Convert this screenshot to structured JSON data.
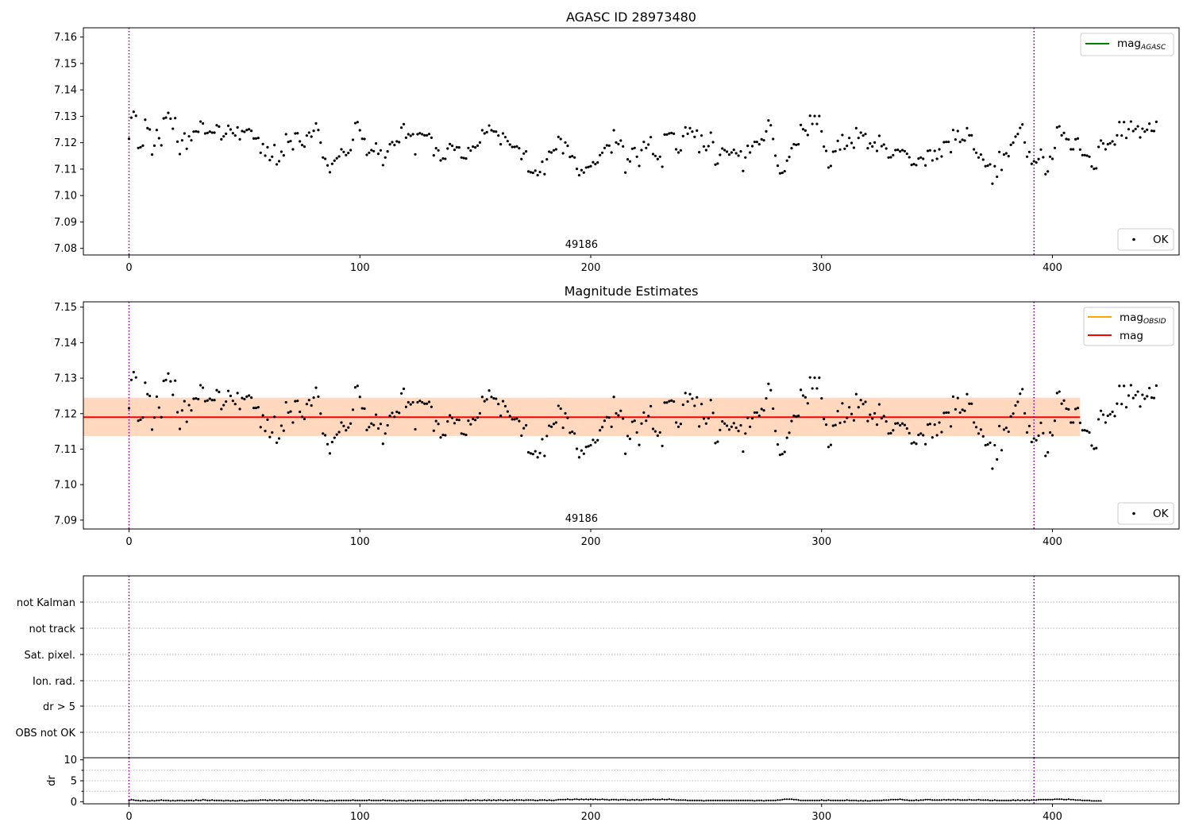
{
  "chart_data": [
    {
      "type": "scatter",
      "title": "AGASC ID 28973480",
      "annotation": "49186",
      "xlim": [
        -20,
        455
      ],
      "ylim": [
        7.0775,
        7.1635
      ],
      "xticks": [
        0,
        100,
        200,
        300,
        400
      ],
      "yticks": [
        7.08,
        7.09,
        7.1,
        7.11,
        7.12,
        7.13,
        7.14,
        7.15,
        7.16
      ],
      "vlines": [
        0,
        392
      ],
      "legend_top": [
        {
          "label": "mag",
          "sub": "AGASC",
          "color": "#008000"
        }
      ],
      "legend_bottom": [
        {
          "label": "OK",
          "color": "#000000"
        }
      ],
      "legend_placement": "top-right / bottom-right",
      "grid": false
    },
    {
      "type": "scatter",
      "title": "Magnitude Estimates",
      "annotation": "49186",
      "xlim": [
        -20,
        455
      ],
      "ylim": [
        7.0875,
        7.1515
      ],
      "xticks": [
        0,
        100,
        200,
        300,
        400
      ],
      "yticks": [
        7.09,
        7.1,
        7.11,
        7.12,
        7.13,
        7.14,
        7.15
      ],
      "vlines": [
        0,
        392
      ],
      "mag_line": 7.119,
      "mag_band": [
        7.1137,
        7.1245
      ],
      "band_xrange": [
        -20,
        412
      ],
      "legend_top": [
        {
          "label": "mag",
          "sub": "OBSID",
          "color": "#ffa500"
        },
        {
          "label": "mag",
          "sub": "",
          "color": "#ff0000"
        }
      ],
      "legend_bottom": [
        {
          "label": "OK",
          "color": "#000000"
        }
      ],
      "grid": false
    },
    {
      "type": "table",
      "flag_labels": [
        "not Kalman",
        "not track",
        "Sat. pixel.",
        "Ion. rad.",
        "dr > 5",
        "OBS not OK"
      ],
      "vlines": [
        0,
        392
      ],
      "xlim": [
        -20,
        455
      ],
      "grid": true
    },
    {
      "type": "scatter",
      "ylabel": "dr",
      "xlim": [
        -20,
        455
      ],
      "ylim": [
        -0.5,
        10.5
      ],
      "xticks": [
        0,
        100,
        200,
        300,
        400
      ],
      "yticks": [
        0,
        5,
        10
      ],
      "vlines": [
        0,
        392
      ],
      "dr_typical": [
        0,
        0.8
      ],
      "grid": true
    }
  ],
  "colors": {
    "vline": "#800080",
    "points": "#000000",
    "band_fill": "#ffc0cb",
    "band_overlay": "#ffa500",
    "grid": "#b0b0b0"
  },
  "mag_series": [
    7.1215,
    7.1295,
    7.1317,
    7.1302,
    7.118,
    7.1183,
    7.1189,
    7.1287,
    7.1255,
    7.125,
    7.1155,
    7.1189,
    7.1248,
    7.1217,
    7.119,
    7.1292,
    7.1295,
    7.1313,
    7.1291,
    7.1253,
    7.1293,
    7.1204,
    7.1157,
    7.1209,
    7.1235,
    7.1177,
    7.1224,
    7.1209,
    7.1242,
    7.1243,
    7.1241,
    7.128,
    7.1273,
    7.1235,
    7.1237,
    7.1242,
    7.1238,
    7.1238,
    7.1266,
    7.1261,
    7.1213,
    7.1224,
    7.1234,
    7.1264,
    7.125,
    7.1236,
    7.1227,
    7.1258,
    7.1213,
    7.1244,
    7.1241,
    7.1248,
    7.1251,
    7.1245,
    7.1216,
    7.1216,
    7.1218,
    7.1162,
    7.1195,
    7.1151,
    7.1183,
    7.1134,
    7.1147,
    7.1191,
    7.1118,
    7.113,
    7.1166,
    7.1152,
    7.1232,
    7.1203,
    7.1206,
    7.1175,
    7.1235,
    7.1236,
    7.1205,
    7.1191,
    7.1185,
    7.1227,
    7.1238,
    7.1223,
    7.1245,
    7.1273,
    7.1248,
    7.12,
    7.1144,
    7.1139,
    7.1114,
    7.1088,
    7.112,
    7.1132,
    7.1141,
    7.1148,
    7.1175,
    7.1165,
    7.1153,
    7.1161,
    7.1172,
    7.1211,
    7.1274,
    7.1278,
    7.1247,
    7.1215,
    7.1214,
    7.1154,
    7.1162,
    7.1172,
    7.1168,
    7.1197,
    7.1158,
    7.1171,
    7.1115,
    7.1144,
    7.1167,
    7.1194,
    7.1202,
    7.1191,
    7.1205,
    7.1202,
    7.1257,
    7.127,
    7.1219,
    7.1232,
    7.1226,
    7.1232,
    7.1156,
    7.1232,
    7.1236,
    7.1232,
    7.1228,
    7.1228,
    7.1233,
    7.1219,
    7.1152,
    7.1179,
    7.1171,
    7.1133,
    7.114,
    7.1139,
    7.1178,
    7.1195,
    7.1188,
    7.1173,
    7.1183,
    7.1182,
    7.1144,
    7.1142,
    7.114,
    7.118,
    7.117,
    7.1185,
    7.1182,
    7.1189,
    7.1201,
    7.1247,
    7.1235,
    7.124,
    7.1265,
    7.1247,
    7.1243,
    7.1242,
    7.1227,
    7.1194,
    7.1235,
    7.1221,
    7.1206,
    7.1193,
    7.1184,
    7.1184,
    7.1186,
    7.1179,
    7.1138,
    7.1159,
    7.1167,
    7.1091,
    7.1088,
    7.1086,
    7.1094,
    7.1077,
    7.1089,
    7.1128,
    7.1081,
    7.1137,
    7.1166,
    7.1163,
    7.1171,
    7.1175,
    7.1222,
    7.1214,
    7.116,
    7.1201,
    7.1188,
    7.1146,
    7.1149,
    7.1144,
    7.1101,
    7.1077,
    7.1096,
    7.1087,
    7.1106,
    7.1108,
    7.1111,
    7.1126,
    7.1119,
    7.1125,
    7.1153,
    7.1162,
    7.118,
    7.119,
    7.1189,
    7.1163,
    7.1247,
    7.1201,
    7.1195,
    7.1208,
    7.1186,
    7.1087,
    7.1137,
    7.1129,
    7.1177,
    7.118,
    7.1147,
    7.1112,
    7.1172,
    7.1203,
    7.118,
    7.1193,
    7.1221,
    7.1157,
    7.115,
    7.1138,
    7.1147,
    7.1109,
    7.1231,
    7.1231,
    7.1235,
    7.1237,
    7.1234,
    7.1175,
    7.1163,
    7.1171,
    7.1225,
    7.1258,
    7.1234,
    7.1255,
    7.1242,
    7.1222,
    7.1246,
    7.1164,
    7.1227,
    7.1186,
    7.1172,
    7.1187,
    7.1238,
    7.1202,
    7.1117,
    7.1121,
    7.1154,
    7.1178,
    7.1172,
    7.1166,
    7.1155,
    7.1163,
    7.1173,
    7.116,
    7.1151,
    7.1167,
    7.1093,
    7.1144,
    7.1188,
    7.1163,
    7.1187,
    7.1203,
    7.1203,
    7.1194,
    7.1213,
    7.1209,
    7.1243,
    7.1284,
    7.1266,
    7.1214,
    7.1151,
    7.1113,
    7.1084,
    7.1086,
    7.1092,
    7.1132,
    7.1146,
    7.1179,
    7.1194,
    7.1192,
    7.1194,
    7.1267,
    7.1251,
    7.1246,
    7.1229,
    7.1302,
    7.1271,
    7.1301,
    7.1271,
    7.1301,
    7.1243,
    7.1185,
    7.1169,
    7.1106,
    7.1112,
    7.1166,
    7.1168,
    7.1207,
    7.1174,
    7.1229,
    7.1177,
    7.1188,
    7.1218,
    7.1199,
    7.1181,
    7.1255,
    7.1218,
    7.1238,
    7.1227,
    7.1233,
    7.1179,
    7.1197,
    7.1186,
    7.1201,
    7.1169,
    7.1226,
    7.1187,
    7.1193,
    7.1178,
    7.1144,
    7.1145,
    7.1153,
    7.1172,
    7.1173,
    7.1167,
    7.1172,
    7.1168,
    7.1158,
    7.1145,
    7.1116,
    7.1119,
    7.1115,
    7.114,
    7.1144,
    7.1139,
    7.1114,
    7.1169,
    7.1171,
    7.1133,
    7.1169,
    7.1139,
    7.1175,
    7.1148,
    7.1202,
    7.1203,
    7.1203,
    7.1164,
    7.1248,
    7.1212,
    7.1244,
    7.1203,
    7.1211,
    7.1208,
    7.1255,
    7.1228,
    7.1228,
    7.1175,
    7.1162,
    7.1144,
    7.1155,
    7.1136,
    7.1111,
    7.1113,
    7.1118,
    7.1045,
    7.1111,
    7.1071,
    7.1165,
    7.1097,
    7.1155,
    7.116,
    7.1149,
    7.1192,
    7.12,
    7.1223,
    7.1233,
    7.1256,
    7.1269,
    7.1201,
    7.1147,
    7.1165,
    7.112,
    7.113,
    7.1125,
    7.1138,
    7.1174,
    7.1145,
    7.1081,
    7.1091,
    7.1147,
    7.1139,
    7.118,
    7.1258,
    7.1262,
    7.1228,
    7.1237,
    7.1214,
    7.1212,
    7.1175,
    7.1175,
    7.1213,
    7.1216,
    7.1174,
    7.1153,
    7.1153,
    7.1151,
    7.1147,
    7.111,
    7.1101,
    7.1103,
    7.1184,
    7.1208,
    7.1197,
    7.1175,
    7.1194,
    7.1198,
    7.1205,
    7.1193,
    7.1228,
    7.1278,
    7.1227,
    7.1278,
    7.1218,
    7.1251,
    7.128,
    7.1244,
    7.1252,
    7.1262,
    7.122,
    7.1253,
    7.1242,
    7.1249,
    7.1272,
    7.1245,
    7.1244,
    7.1279
  ],
  "dr_series": [
    0.2,
    0.5,
    0.4,
    0.3,
    0.3,
    0.2,
    0.3,
    0.3,
    0.2,
    0.2,
    0.3,
    0.2,
    0.3,
    0.3,
    0.4,
    0.3,
    0.3,
    0.3,
    0.2,
    0.3,
    0.2,
    0.3,
    0.3,
    0.3,
    0.2,
    0.3,
    0.3,
    0.3,
    0.2,
    0.4,
    0.3,
    0.3,
    0.5,
    0.4,
    0.3,
    0.3,
    0.4,
    0.3,
    0.3,
    0.3,
    0.3,
    0.2,
    0.3,
    0.3,
    0.2,
    0.3,
    0.2,
    0.2,
    0.3,
    0.3,
    0.2,
    0.2,
    0.3,
    0.3,
    0.3,
    0.3,
    0.3,
    0.4,
    0.4,
    0.4,
    0.3,
    0.4,
    0.3,
    0.4,
    0.3,
    0.4,
    0.3,
    0.3,
    0.4,
    0.3,
    0.4,
    0.3,
    0.3,
    0.3,
    0.3,
    0.4,
    0.3,
    0.3,
    0.4,
    0.3,
    0.4,
    0.3,
    0.3,
    0.3,
    0.3,
    0.2,
    0.2,
    0.3,
    0.3,
    0.2,
    0.3,
    0.3,
    0.3,
    0.3,
    0.3,
    0.3,
    0.3,
    0.4,
    0.3,
    0.3,
    0.3,
    0.3,
    0.3,
    0.3,
    0.4,
    0.3,
    0.3,
    0.3,
    0.3,
    0.3,
    0.4,
    0.3,
    0.3,
    0.3,
    0.2,
    0.3,
    0.2,
    0.3,
    0.3,
    0.3,
    0.2,
    0.3,
    0.3,
    0.2,
    0.3,
    0.3,
    0.3,
    0.3,
    0.2,
    0.3,
    0.3,
    0.3,
    0.2,
    0.3,
    0.3,
    0.2,
    0.3,
    0.3,
    0.3,
    0.3,
    0.3,
    0.3,
    0.3,
    0.3,
    0.3,
    0.3,
    0.4,
    0.3,
    0.3,
    0.4,
    0.3,
    0.4,
    0.3,
    0.3,
    0.4,
    0.3,
    0.4,
    0.3,
    0.4,
    0.3,
    0.4,
    0.4,
    0.3,
    0.4,
    0.3,
    0.4,
    0.4,
    0.3,
    0.4,
    0.4,
    0.4,
    0.3,
    0.4,
    0.4,
    0.4,
    0.4,
    0.3,
    0.3,
    0.4,
    0.4,
    0.4,
    0.3,
    0.4,
    0.3,
    0.3,
    0.4,
    0.5,
    0.5,
    0.5,
    0.5,
    0.6,
    0.5,
    0.5,
    0.6,
    0.6,
    0.5,
    0.6,
    0.5,
    0.6,
    0.5,
    0.6,
    0.5,
    0.6,
    0.5,
    0.5,
    0.6,
    0.5,
    0.5,
    0.4,
    0.5,
    0.5,
    0.5,
    0.4,
    0.5,
    0.5,
    0.5,
    0.4,
    0.4,
    0.5,
    0.4,
    0.5,
    0.4,
    0.4,
    0.5,
    0.5,
    0.5,
    0.5,
    0.6,
    0.5,
    0.5,
    0.5,
    0.6,
    0.5,
    0.5,
    0.6,
    0.5,
    0.5,
    0.4,
    0.4,
    0.4,
    0.4,
    0.4,
    0.3,
    0.3,
    0.3,
    0.3,
    0.3,
    0.3,
    0.3,
    0.2,
    0.3,
    0.3,
    0.3,
    0.3,
    0.3,
    0.3,
    0.3,
    0.3,
    0.3,
    0.3,
    0.3,
    0.3,
    0.3,
    0.3,
    0.3,
    0.3,
    0.3,
    0.3,
    0.3,
    0.3,
    0.3,
    0.2,
    0.3,
    0.3,
    0.3,
    0.2,
    0.3,
    0.3,
    0.3,
    0.3,
    0.3,
    0.4,
    0.4,
    0.5,
    0.6,
    0.6,
    0.6,
    0.6,
    0.5,
    0.5,
    0.4,
    0.3,
    0.3,
    0.3,
    0.3,
    0.3,
    0.3,
    0.3,
    0.3,
    0.3,
    0.4,
    0.3,
    0.3,
    0.4,
    0.3,
    0.3,
    0.3,
    0.3,
    0.3,
    0.3,
    0.3,
    0.4,
    0.3,
    0.3,
    0.3,
    0.3,
    0.2,
    0.3,
    0.2,
    0.3,
    0.2,
    0.2,
    0.3,
    0.3,
    0.3,
    0.3,
    0.3,
    0.4,
    0.4,
    0.4,
    0.5,
    0.5,
    0.5,
    0.5,
    0.6,
    0.5,
    0.4,
    0.4,
    0.3,
    0.3,
    0.3,
    0.4,
    0.3,
    0.4,
    0.4,
    0.5,
    0.5,
    0.5,
    0.4,
    0.4,
    0.4,
    0.4,
    0.4,
    0.5,
    0.4,
    0.5,
    0.4,
    0.5,
    0.4,
    0.5,
    0.4,
    0.4,
    0.4,
    0.4,
    0.5,
    0.4,
    0.4,
    0.4,
    0.5,
    0.4,
    0.4,
    0.4,
    0.4,
    0.3,
    0.3,
    0.4,
    0.3,
    0.3,
    0.3,
    0.3,
    0.3,
    0.3,
    0.3,
    0.4,
    0.3,
    0.4,
    0.3,
    0.4,
    0.3,
    0.4,
    0.3,
    0.4,
    0.4,
    0.4,
    0.5,
    0.5,
    0.5,
    0.5,
    0.5,
    0.5,
    0.5,
    0.6,
    0.6,
    0.6,
    0.6,
    0.5,
    0.5,
    0.6,
    0.5,
    0.5,
    0.4,
    0.4,
    0.4,
    0.3,
    0.3,
    0.3,
    0.3,
    0.2,
    0.2,
    0.2,
    0.2,
    0.2
  ]
}
